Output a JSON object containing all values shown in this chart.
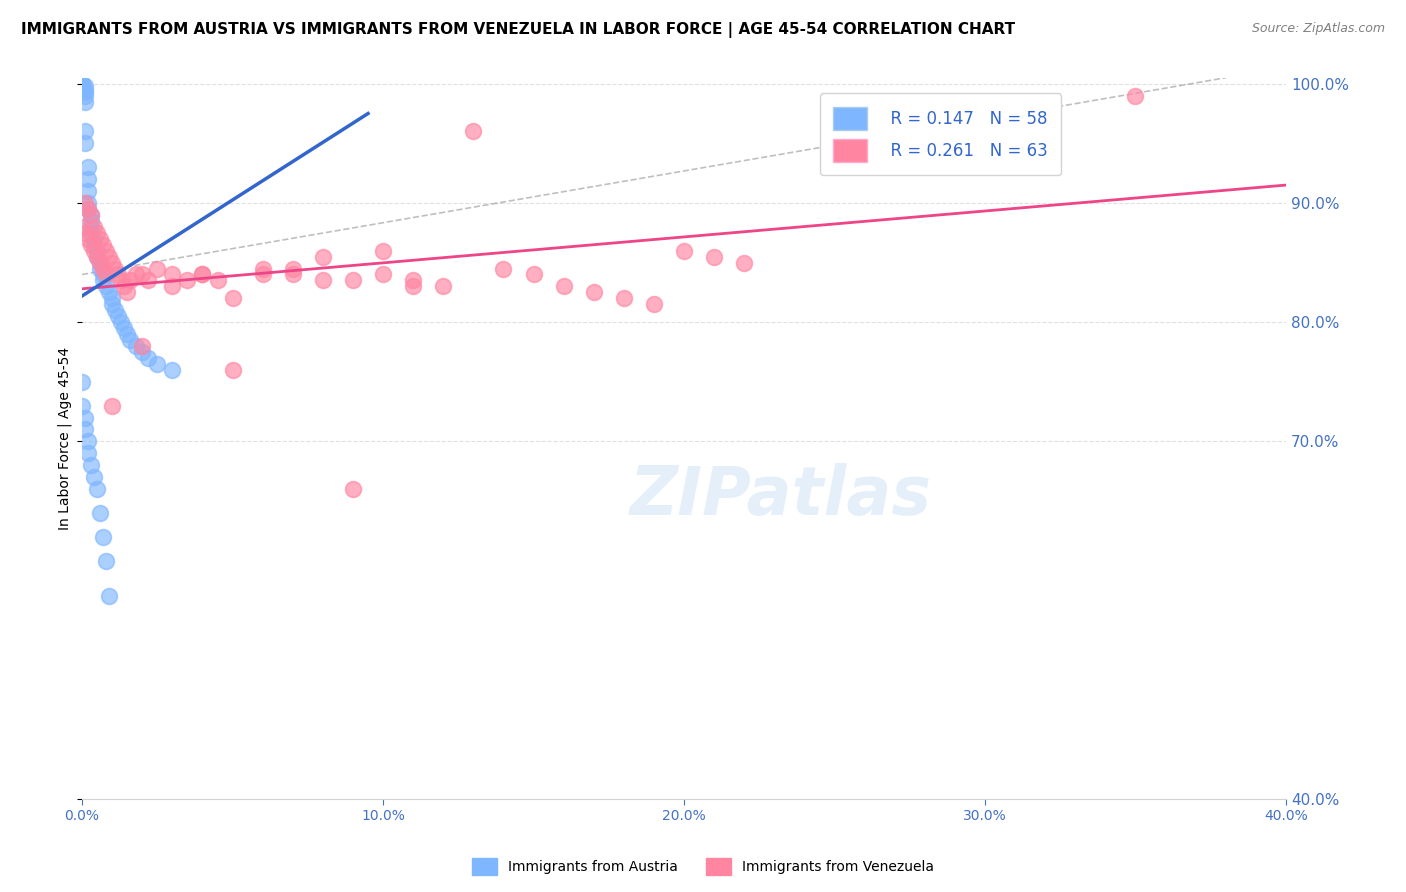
{
  "title": "IMMIGRANTS FROM AUSTRIA VS IMMIGRANTS FROM VENEZUELA IN LABOR FORCE | AGE 45-54 CORRELATION CHART",
  "source": "Source: ZipAtlas.com",
  "ylabel": "In Labor Force | Age 45-54",
  "xlim": [
    0.0,
    0.4
  ],
  "ylim": [
    0.4,
    1.005
  ],
  "yticks": [
    0.4,
    0.7,
    0.8,
    0.9,
    1.0
  ],
  "xticks": [
    0.0,
    0.1,
    0.2,
    0.3,
    0.4
  ],
  "austria_color": "#7EB6FF",
  "venezuela_color": "#FF85A1",
  "austria_label": "Immigrants from Austria",
  "venezuela_label": "Immigrants from Venezuela",
  "austria_R": 0.147,
  "austria_N": 58,
  "venezuela_R": 0.261,
  "venezuela_N": 63,
  "austria_line_color": "#3366CC",
  "venezuela_line_color": "#EE4488",
  "austria_line_x0": 0.0,
  "austria_line_y0": 0.822,
  "austria_line_x1": 0.095,
  "austria_line_y1": 0.975,
  "venezuela_line_x0": 0.0,
  "venezuela_line_y0": 0.828,
  "venezuela_line_x1": 0.4,
  "venezuela_line_y1": 0.915,
  "ref_line_x0": 0.0,
  "ref_line_y0": 0.84,
  "ref_line_x1": 0.38,
  "ref_line_y1": 1.005,
  "austria_x": [
    0.0,
    0.0,
    0.0,
    0.0,
    0.0,
    0.0,
    0.001,
    0.001,
    0.001,
    0.001,
    0.001,
    0.001,
    0.001,
    0.002,
    0.002,
    0.002,
    0.002,
    0.002,
    0.003,
    0.003,
    0.003,
    0.003,
    0.004,
    0.004,
    0.005,
    0.005,
    0.006,
    0.006,
    0.007,
    0.007,
    0.008,
    0.009,
    0.01,
    0.01,
    0.011,
    0.012,
    0.013,
    0.014,
    0.015,
    0.016,
    0.018,
    0.02,
    0.022,
    0.025,
    0.03,
    0.0,
    0.0,
    0.001,
    0.001,
    0.002,
    0.002,
    0.003,
    0.004,
    0.005,
    0.006,
    0.007,
    0.008,
    0.009
  ],
  "austria_y": [
    1.0,
    1.0,
    1.0,
    1.0,
    1.0,
    0.998,
    0.998,
    0.995,
    0.993,
    0.99,
    0.985,
    0.96,
    0.95,
    0.93,
    0.92,
    0.91,
    0.9,
    0.895,
    0.89,
    0.885,
    0.88,
    0.875,
    0.87,
    0.865,
    0.86,
    0.855,
    0.85,
    0.845,
    0.84,
    0.835,
    0.83,
    0.825,
    0.82,
    0.815,
    0.81,
    0.805,
    0.8,
    0.795,
    0.79,
    0.785,
    0.78,
    0.775,
    0.77,
    0.765,
    0.76,
    0.75,
    0.73,
    0.72,
    0.71,
    0.7,
    0.69,
    0.68,
    0.67,
    0.66,
    0.64,
    0.62,
    0.6,
    0.57
  ],
  "venezuela_x": [
    0.0,
    0.001,
    0.001,
    0.002,
    0.002,
    0.003,
    0.003,
    0.004,
    0.004,
    0.005,
    0.005,
    0.006,
    0.006,
    0.007,
    0.007,
    0.008,
    0.008,
    0.009,
    0.01,
    0.011,
    0.012,
    0.013,
    0.014,
    0.015,
    0.016,
    0.018,
    0.02,
    0.022,
    0.025,
    0.03,
    0.035,
    0.04,
    0.045,
    0.05,
    0.06,
    0.07,
    0.08,
    0.09,
    0.1,
    0.11,
    0.12,
    0.13,
    0.14,
    0.15,
    0.16,
    0.17,
    0.18,
    0.19,
    0.2,
    0.21,
    0.22,
    0.01,
    0.02,
    0.03,
    0.04,
    0.05,
    0.06,
    0.07,
    0.08,
    0.09,
    0.1,
    0.11,
    0.35
  ],
  "venezuela_y": [
    0.88,
    0.9,
    0.875,
    0.895,
    0.87,
    0.89,
    0.865,
    0.88,
    0.86,
    0.875,
    0.855,
    0.87,
    0.85,
    0.865,
    0.845,
    0.86,
    0.84,
    0.855,
    0.85,
    0.845,
    0.84,
    0.835,
    0.83,
    0.825,
    0.835,
    0.84,
    0.84,
    0.835,
    0.845,
    0.84,
    0.835,
    0.84,
    0.835,
    0.82,
    0.84,
    0.845,
    0.855,
    0.835,
    0.84,
    0.835,
    0.83,
    0.96,
    0.845,
    0.84,
    0.83,
    0.825,
    0.82,
    0.815,
    0.86,
    0.855,
    0.85,
    0.73,
    0.78,
    0.83,
    0.84,
    0.76,
    0.845,
    0.84,
    0.835,
    0.66,
    0.86,
    0.83,
    0.99
  ],
  "watermark": "ZIPatlas",
  "title_fontsize": 11,
  "axis_label_fontsize": 10,
  "tick_fontsize": 10,
  "legend_fontsize": 11
}
